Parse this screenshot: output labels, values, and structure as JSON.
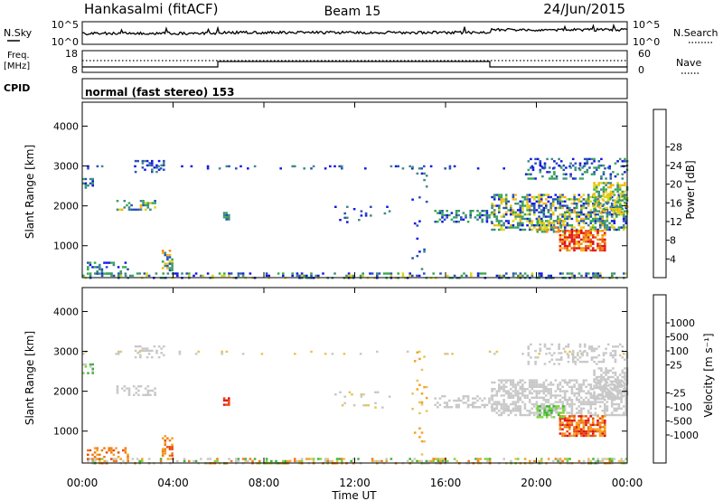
{
  "header": {
    "title": "Hankasalmi (fitACF)",
    "beam": "Beam 15",
    "date": "24/Jun/2015"
  },
  "top_panels": {
    "nsky": {
      "left_label": "N.Sky",
      "right_label": "N.Search",
      "y_top_tick": "10^5",
      "y_bottom_tick": "10^0"
    },
    "freq": {
      "left_label_1": "Freq.",
      "left_label_2": "[MHz]",
      "y_top_tick": "18",
      "y_bottom_tick": "8",
      "right_top_tick": "60",
      "right_bottom_tick": "0",
      "right_label": "Nave"
    },
    "cpid": {
      "left_label": "CPID",
      "value": "normal (fast stereo) 153"
    }
  },
  "chart_data": [
    {
      "type": "heatmap",
      "title": "",
      "ylabel": "Slant Range [km]",
      "xlabel": "Time UT",
      "x_ticks": [
        "00:00",
        "04:00",
        "08:00",
        "12:00",
        "16:00",
        "20:00",
        "00:00"
      ],
      "y_ticks": [
        1000,
        2000,
        3000,
        4000
      ],
      "ylim": [
        200,
        4600
      ],
      "colorbar_label": "Power [dB]",
      "colorbar_ticks": [
        4,
        8,
        12,
        16,
        20,
        24,
        28
      ],
      "colors": [
        "#1515e6",
        "#2850b8",
        "#3f8a84",
        "#35a84e",
        "#d9d615",
        "#f5b510",
        "#f08a10",
        "#ee5512",
        "#e21414"
      ]
    },
    {
      "type": "heatmap",
      "title": "",
      "ylabel": "Slant Range [km]",
      "xlabel": "Time UT",
      "x_ticks": [
        "00:00",
        "04:00",
        "08:00",
        "12:00",
        "16:00",
        "20:00",
        "00:00"
      ],
      "y_ticks": [
        1000,
        2000,
        3000,
        4000
      ],
      "ylim": [
        200,
        4600
      ],
      "colorbar_label": "Velocity [m s⁻¹]",
      "colorbar_ticks": [
        1000,
        500,
        100,
        25,
        -25,
        -100,
        -500,
        -1000
      ],
      "colors": [
        "#1a2fd4",
        "#2a5ab5",
        "#338a7a",
        "#3fb23c",
        "#7dd43a",
        "#c8c8c8",
        "#c8c8c8",
        "#e6c45a",
        "#f5a020",
        "#f07a14",
        "#ea4a12",
        "#e01414"
      ]
    }
  ],
  "x_axis": {
    "ticks": [
      "00:00",
      "04:00",
      "08:00",
      "12:00",
      "16:00",
      "20:00",
      "00:00"
    ],
    "label": "Time UT"
  }
}
